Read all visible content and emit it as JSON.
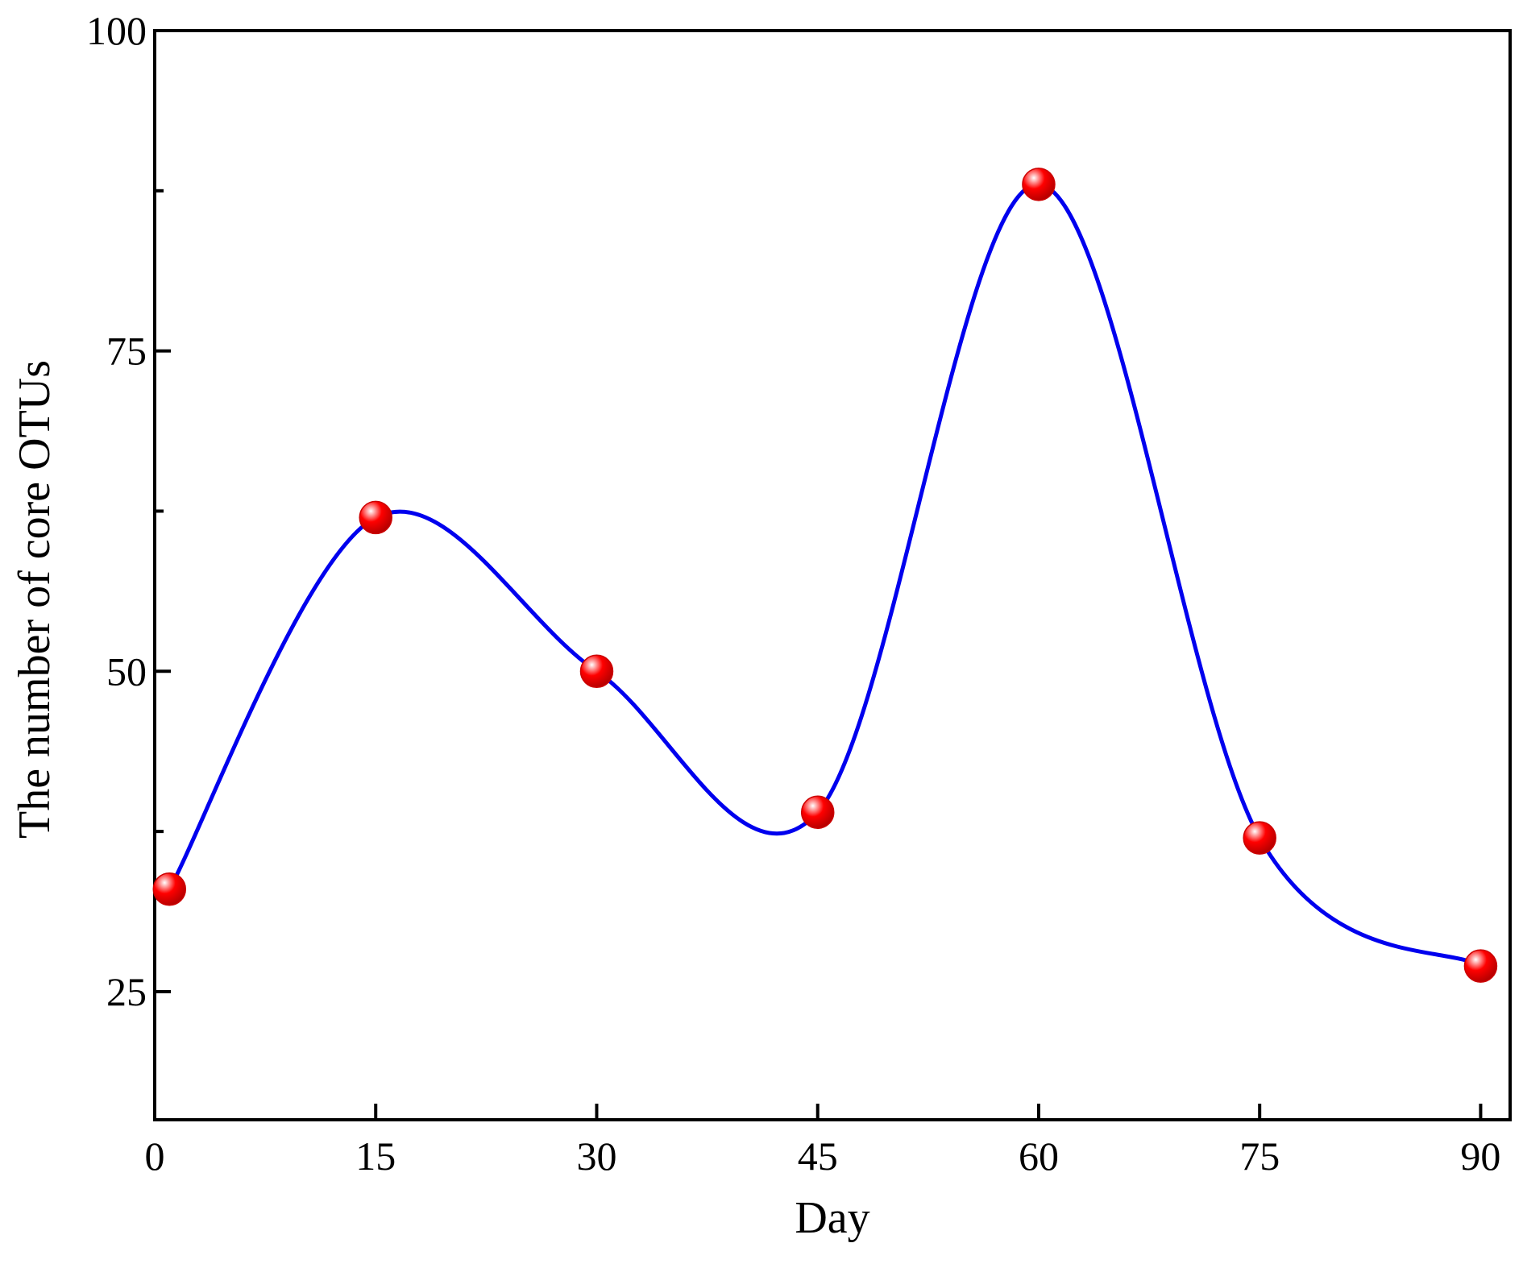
{
  "chart_data": {
    "type": "line",
    "xlabel": "Day",
    "ylabel": "The number of  core OTUs",
    "x": [
      1,
      15,
      30,
      45,
      60,
      75,
      90
    ],
    "series": [
      {
        "values": [
          33,
          62,
          50,
          39,
          88,
          37,
          27
        ]
      }
    ],
    "xlim": [
      0,
      92
    ],
    "ylim": [
      15,
      100
    ],
    "xticks": [
      0,
      15,
      30,
      45,
      60,
      75,
      90
    ],
    "yticks": [
      25,
      50,
      75,
      100
    ],
    "y_minor_ticks": [
      37.5,
      62.5,
      87.5
    ],
    "grid": false,
    "smooth": true,
    "line_color": "#0000ee",
    "marker_color": "#ee0000"
  }
}
